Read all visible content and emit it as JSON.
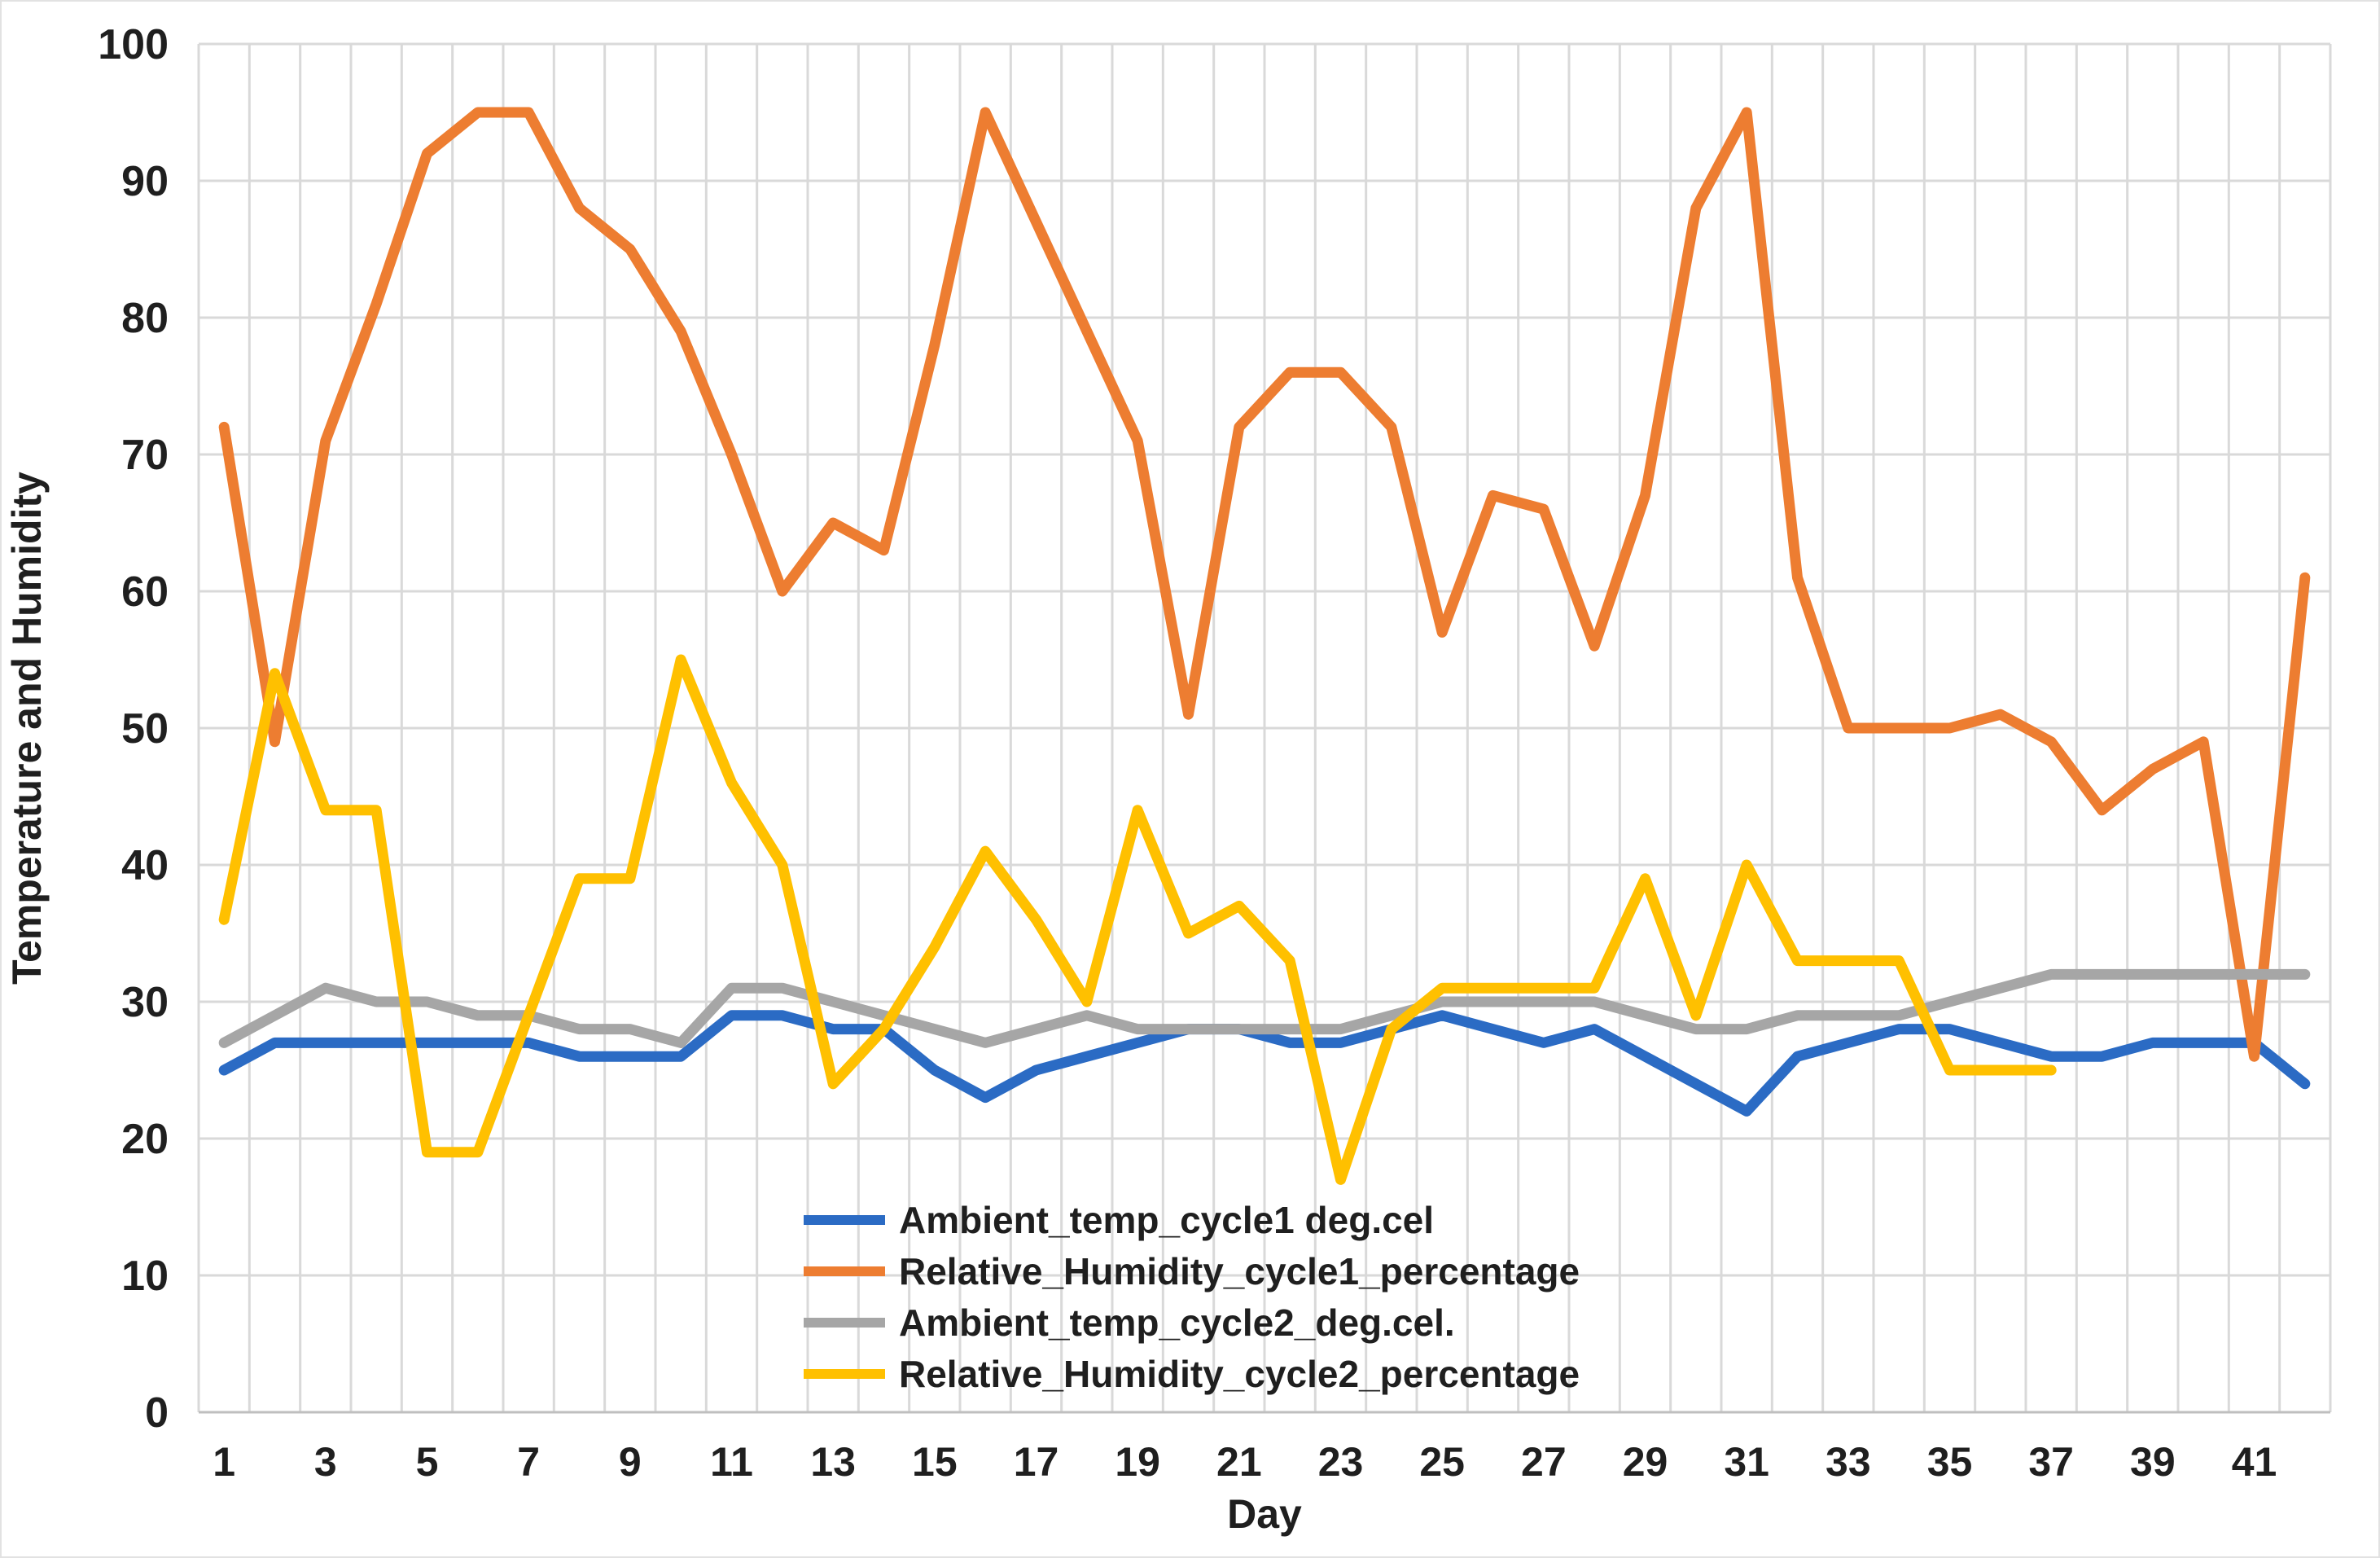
{
  "chart_data": {
    "type": "line",
    "title": "",
    "xlabel": "Day",
    "ylabel": "Temperature and Humidity",
    "ylim": [
      0,
      100
    ],
    "y_ticks": [
      0,
      10,
      20,
      30,
      40,
      50,
      60,
      70,
      80,
      90,
      100
    ],
    "x_days": 42,
    "x_tick_labels": [
      1,
      3,
      5,
      7,
      9,
      11,
      13,
      15,
      17,
      19,
      21,
      23,
      25,
      27,
      29,
      31,
      33,
      35,
      37,
      39,
      41
    ],
    "grid": "both",
    "legend_position": "inside-bottom-center",
    "colors": {
      "grid": "#d9d9d9",
      "axis_line": "#bfbfbf",
      "text": "#1f1f1f",
      "background": "#ffffff"
    },
    "series": [
      {
        "name": "Ambient_temp_cycle1 deg.cel",
        "color": "#2b6bc4",
        "start_day": 1,
        "values": [
          25,
          27,
          27,
          27,
          27,
          27,
          27,
          26,
          26,
          26,
          29,
          29,
          28,
          28,
          25,
          23,
          25,
          26,
          27,
          28,
          28,
          27,
          27,
          28,
          29,
          28,
          27,
          28,
          26,
          24,
          22,
          26,
          27,
          28,
          28,
          27,
          26,
          26,
          27,
          27,
          27,
          24
        ]
      },
      {
        "name": "Relative_Humidity_cycle1_percentage",
        "color": "#ed7d31",
        "start_day": 1,
        "values": [
          72,
          49,
          71,
          81,
          92,
          95,
          95,
          88,
          85,
          79,
          70,
          60,
          65,
          63,
          78,
          95,
          87,
          79,
          71,
          51,
          72,
          76,
          76,
          72,
          57,
          67,
          66,
          56,
          67,
          88,
          95,
          61,
          50,
          50,
          50,
          51,
          49,
          44,
          47,
          49,
          26,
          61
        ]
      },
      {
        "name": "Ambient_temp_cycle2_deg.cel.",
        "color": "#a6a6a6",
        "start_day": 1,
        "values": [
          27,
          29,
          31,
          30,
          30,
          29,
          29,
          28,
          28,
          27,
          31,
          31,
          30,
          29,
          28,
          27,
          28,
          29,
          28,
          28,
          28,
          28,
          28,
          29,
          30,
          30,
          30,
          30,
          29,
          28,
          28,
          29,
          29,
          29,
          30,
          31,
          32,
          32,
          32,
          32,
          32,
          32
        ]
      },
      {
        "name": "Relative_Humidity_cycle2_percentage",
        "color": "#ffc000",
        "start_day": 1,
        "values": [
          36,
          54,
          44,
          44,
          19,
          19,
          29,
          39,
          39,
          55,
          46,
          40,
          24,
          28,
          34,
          41,
          36,
          30,
          44,
          35,
          37,
          33,
          17,
          28,
          31,
          31,
          31,
          31,
          39,
          29,
          40,
          33,
          33,
          33,
          25,
          25,
          25
        ]
      }
    ],
    "layout": {
      "plot_left": 242,
      "plot_right": 2860,
      "plot_top": 52,
      "plot_bottom": 1732,
      "ytick_right_x": 205,
      "xtick_y": 1792,
      "xlabel_y": 1874,
      "ylabel_x": 48,
      "legend_swatch_x1": 985,
      "legend_swatch_x2": 1085,
      "legend_text_x": 1102,
      "legend_first_row_y": 1496,
      "legend_row_gap": 63,
      "series_stroke": 13,
      "grid_stroke": 3
    }
  }
}
